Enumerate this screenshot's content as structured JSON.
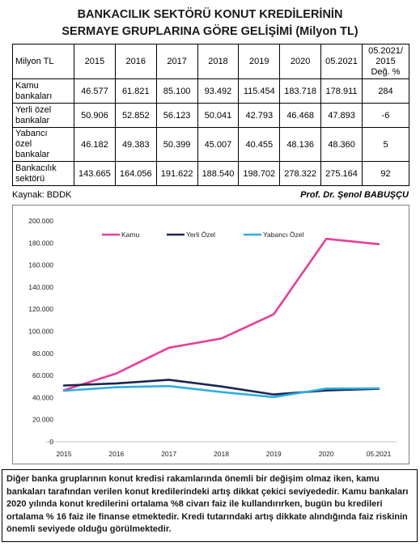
{
  "title": {
    "line1": "BANKACILIK SEKTÖRÜ KONUT KREDİLERİNİN",
    "line2": "SERMAYE GRUPLARINA GÖRE GELİŞİMİ (Milyon TL)"
  },
  "table": {
    "corner": "Milyon TL",
    "columns": [
      "2015",
      "2016",
      "2017",
      "2018",
      "2019",
      "2020",
      "05.2021"
    ],
    "change_header": [
      "05.2021/",
      "2015",
      "Değ. %"
    ],
    "rows": [
      {
        "label": [
          "Kamu",
          "bankaları"
        ],
        "values": [
          "46.577",
          "61.821",
          "85.100",
          "93.492",
          "115.454",
          "183.718",
          "178.911"
        ],
        "change": "284"
      },
      {
        "label": [
          "Yerli özel",
          "bankalar"
        ],
        "values": [
          "50.906",
          "52.852",
          "56.123",
          "50.041",
          "42.793",
          "46.468",
          "47.893"
        ],
        "change": "-6"
      },
      {
        "label": [
          "Yabancı",
          "özel",
          "bankalar"
        ],
        "values": [
          "46.182",
          "49.383",
          "50.399",
          "45.007",
          "40.455",
          "48.136",
          "48.360"
        ],
        "change": "5"
      },
      {
        "label": [
          "Bankacılık",
          "sektörü"
        ],
        "values": [
          "143.665",
          "164.056",
          "191.622",
          "188.540",
          "198.702",
          "278.322",
          "275.164"
        ],
        "change": "92"
      }
    ]
  },
  "source": "Kaynak: BDDK",
  "author": "Prof. Dr. Şenol BABUŞÇU",
  "chart_data": {
    "type": "line",
    "categories": [
      "2015",
      "2016",
      "2017",
      "2018",
      "2019",
      "2020",
      "05.2021"
    ],
    "series": [
      {
        "name": "Kamu",
        "color": "#e83e9b",
        "values": [
          46577,
          61821,
          85100,
          93492,
          115454,
          183718,
          178911
        ]
      },
      {
        "name": "Yerli Özel",
        "color": "#1a2650",
        "values": [
          50906,
          52852,
          56123,
          50041,
          42793,
          46468,
          47893
        ]
      },
      {
        "name": "Yabancı Özel",
        "color": "#2eaee0",
        "values": [
          46182,
          49383,
          50399,
          45007,
          40455,
          48136,
          48360
        ]
      }
    ],
    "ylim": [
      0,
      200000
    ],
    "yticks": [
      0,
      20000,
      40000,
      60000,
      80000,
      100000,
      120000,
      140000,
      160000,
      180000,
      200000
    ],
    "ytick_labels": [
      "0",
      "20.000",
      "40.000",
      "60.000",
      "80.000",
      "100.000",
      "120.000",
      "140.000",
      "160.000",
      "180.000",
      "200.000"
    ],
    "grid": false,
    "legend_position": "top"
  },
  "note": "Diğer banka gruplarının konut kredisi rakamlarında önemli bir değişim olmaz iken, kamu bankaları tarafından verilen konut kredilerindeki artış dikkat çekici seviyededir. Kamu bankaları 2020 yılında konut kredilerini ortalama %8 civarı faiz ile kullandırırken, bugün bu kredileri ortalama % 16 faiz ile finanse etmektedir. Kredi tutarındaki artış dikkate alındığında faiz riskinin önemli seviyede olduğu görülmektedir."
}
